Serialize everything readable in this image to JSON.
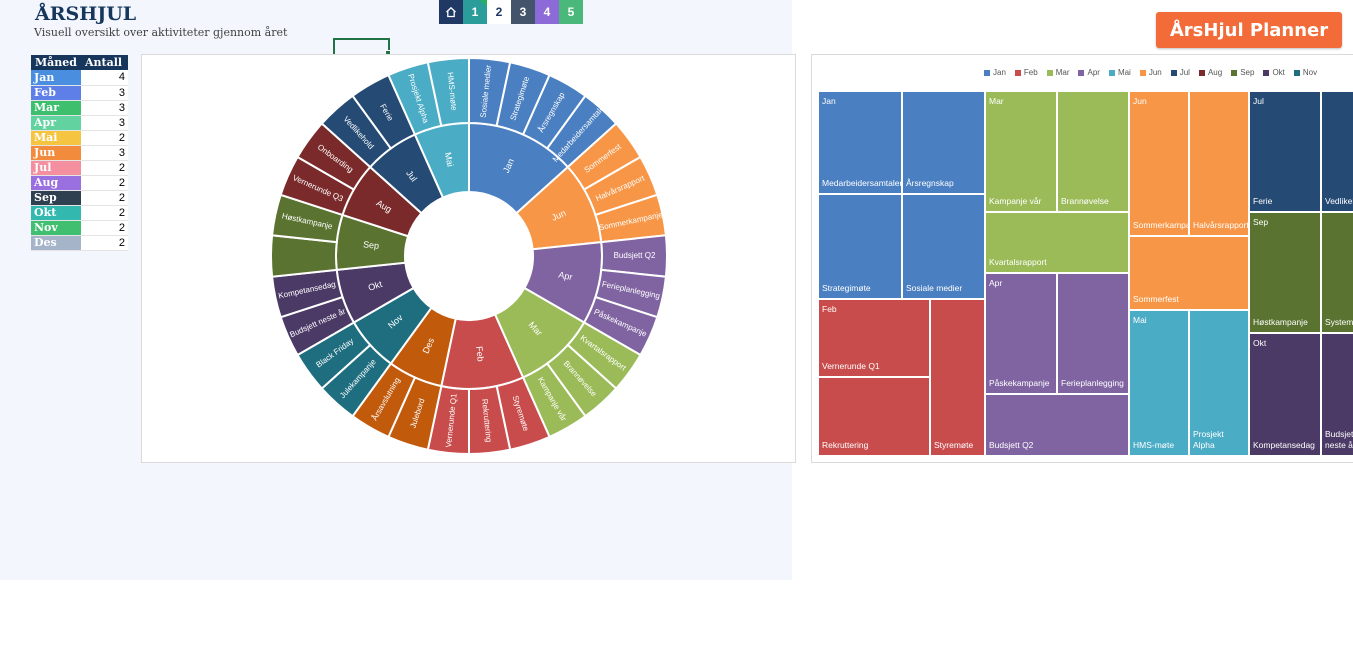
{
  "header": {
    "title": "ÅRSHJUL",
    "subtitle": "Visuell oversikt over aktiviteter gjennom året"
  },
  "nav": [
    {
      "label": "",
      "icon": "home-icon",
      "color": "#1f3864"
    },
    {
      "label": "1",
      "color": "#2a9d9a"
    },
    {
      "label": "2",
      "color": "#ffffff",
      "text_color": "#1f3864"
    },
    {
      "label": "3",
      "color": "#44546a"
    },
    {
      "label": "4",
      "color": "#8c6bd9"
    },
    {
      "label": "5",
      "color": "#4ab87a"
    }
  ],
  "month_table": {
    "headers": [
      "Måned",
      "Antall"
    ],
    "rows": [
      {
        "month": "Jan",
        "count": "4",
        "color": "#4a8fdf"
      },
      {
        "month": "Feb",
        "count": "3",
        "color": "#5f7fe8"
      },
      {
        "month": "Mar",
        "count": "3",
        "color": "#3dbf6e"
      },
      {
        "month": "Apr",
        "count": "3",
        "color": "#62d3a0"
      },
      {
        "month": "Mai",
        "count": "2",
        "color": "#f5c542"
      },
      {
        "month": "Jun",
        "count": "3",
        "color": "#f28b3c"
      },
      {
        "month": "Jul",
        "count": "2",
        "color": "#f48fa0"
      },
      {
        "month": "Aug",
        "count": "2",
        "color": "#9a6fe0"
      },
      {
        "month": "Sep",
        "count": "2",
        "color": "#2f4050"
      },
      {
        "month": "Okt",
        "count": "2",
        "color": "#33b8b0"
      },
      {
        "month": "Nov",
        "count": "2",
        "color": "#3fbf6f"
      },
      {
        "month": "Des",
        "count": "2",
        "color": "#a5b4c8"
      }
    ]
  },
  "colors": {
    "Jan": "#4a7fc1",
    "Feb": "#c94c4c",
    "Mar": "#9bbb59",
    "Apr": "#8064a2",
    "Mai": "#4bacc6",
    "Jun": "#f79646",
    "Jul": "#254a74",
    "Aug": "#7a2a2a",
    "Sep": "#5a7330",
    "Okt": "#4b3a66",
    "Nov": "#1f6e7f",
    "Des": "#c25a0c"
  },
  "sunburst": {
    "months": [
      {
        "name": "Jan",
        "activities": [
          "Sosiale medier",
          "Strategimøte",
          "Årsregnskap",
          "Medarbeidersamtaler"
        ]
      },
      {
        "name": "Jun",
        "activities": [
          "Sommerfest",
          "Halvårsrapport",
          "Sommerkampanje"
        ]
      },
      {
        "name": "Apr",
        "activities": [
          "Budsjett Q2",
          "Ferieplanlegging",
          "Påskekampanje"
        ]
      },
      {
        "name": "Mar",
        "activities": [
          "Kvartalsrapport",
          "Brannøvelse",
          "Kampanje vår"
        ]
      },
      {
        "name": "Feb",
        "activities": [
          "Styremøte",
          "Rekruttering",
          "Vernerunde Q1"
        ]
      },
      {
        "name": "Des",
        "activities": [
          "Julebord",
          "Årsavslutning"
        ]
      },
      {
        "name": "Nov",
        "activities": [
          "Julekampanje",
          "Black Friday"
        ]
      },
      {
        "name": "Okt",
        "activities": [
          "Budsjett neste år",
          "Kompetansedag"
        ]
      },
      {
        "name": "Sep",
        "activities": [
          "",
          "Høstkampanje"
        ]
      },
      {
        "name": "Aug",
        "activities": [
          "Vernerunde Q3",
          "Onboarding"
        ]
      },
      {
        "name": "Jul",
        "activities": [
          "Vedlikehold",
          "Ferie"
        ]
      },
      {
        "name": "Mai",
        "activities": [
          "Prosjekt Alpha",
          "HMS-møte"
        ]
      }
    ]
  },
  "treemap": {
    "legend": [
      "Jan",
      "Feb",
      "Mar",
      "Apr",
      "Mai",
      "Jun",
      "Jul",
      "Aug",
      "Sep",
      "Okt",
      "Nov"
    ],
    "tiles": [
      {
        "month": "Jan",
        "header": "Jan",
        "label": "Medarbeidersamtaler"
      },
      {
        "month": "Jan",
        "header": "",
        "label": "Årsregnskap"
      },
      {
        "month": "Jan",
        "header": "",
        "label": "Strategimøte"
      },
      {
        "month": "Jan",
        "header": "",
        "label": "Sosiale medier"
      },
      {
        "month": "Feb",
        "header": "Feb",
        "label": "Vernerunde Q1"
      },
      {
        "month": "Feb",
        "header": "",
        "label": "Rekruttering"
      },
      {
        "month": "Feb",
        "header": "",
        "label": "Styremøte"
      },
      {
        "month": "Mar",
        "header": "Mar",
        "label": "Kampanje vår"
      },
      {
        "month": "Mar",
        "header": "",
        "label": "Brannøvelse"
      },
      {
        "month": "Mar",
        "header": "",
        "label": "Kvartalsrapport"
      },
      {
        "month": "Apr",
        "header": "Apr",
        "label": "Påskekampanje"
      },
      {
        "month": "Apr",
        "header": "",
        "label": "Ferieplanlegging"
      },
      {
        "month": "Apr",
        "header": "",
        "label": "Budsjett Q2"
      },
      {
        "month": "Jun",
        "header": "Jun",
        "label": "Sommerkampanje"
      },
      {
        "month": "Jun",
        "header": "",
        "label": "Halvårsrapport"
      },
      {
        "month": "Jun",
        "header": "",
        "label": "Sommerfest"
      },
      {
        "month": "Mai",
        "header": "Mai",
        "label": "HMS-møte"
      },
      {
        "month": "Mai",
        "header": "",
        "label": "Prosjekt Alpha"
      },
      {
        "month": "Jul",
        "header": "Jul",
        "label": "Ferie"
      },
      {
        "month": "Jul",
        "header": "",
        "label": "Vedlikehold"
      },
      {
        "month": "Sep",
        "header": "Sep",
        "label": "Høstkampanje"
      },
      {
        "month": "Sep",
        "header": "",
        "label": "Systemoppdatering"
      },
      {
        "month": "Okt",
        "header": "Okt",
        "label": "Kompetansedag"
      },
      {
        "month": "Okt",
        "header": "",
        "label": "Budsjett neste år"
      }
    ]
  },
  "planner_button": "ÅrsHjul Planner"
}
